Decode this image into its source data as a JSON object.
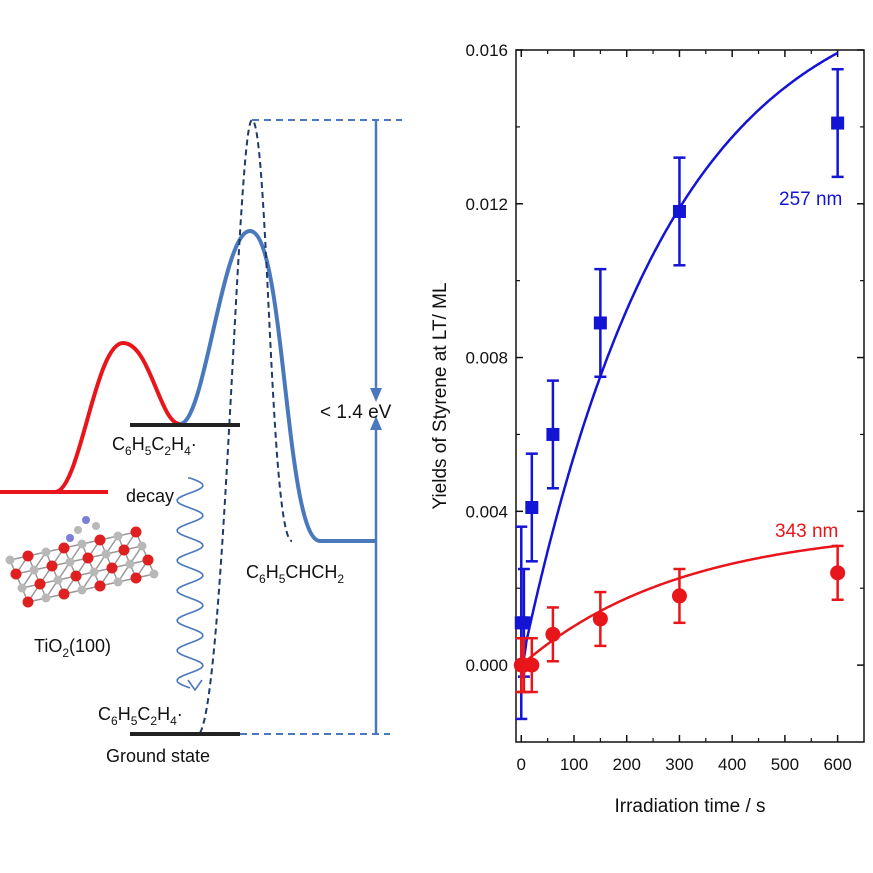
{
  "diagram": {
    "states": {
      "excited_label_base": "C",
      "ground_label": "Ground state",
      "product_label": "C6H5CHCH2",
      "substrate_label": "TiO2(100)"
    },
    "labels": {
      "decay": "decay",
      "barrier": "< 1.4 eV",
      "formula_excited": [
        "C",
        "6",
        "H",
        "5",
        "C",
        "2",
        "H",
        "4",
        "·"
      ],
      "formula_ground": [
        "C",
        "6",
        "H",
        "5",
        "C",
        "2",
        "H",
        "4",
        "·"
      ],
      "formula_product": [
        "C",
        "6",
        "H",
        "5",
        "CHCH",
        "2",
        ""
      ],
      "formula_substrate": [
        "TiO",
        "2",
        "(100)",
        "",
        ""
      ]
    },
    "colors": {
      "red_curve": "#e8161b",
      "blue_curve": "#4a78bd",
      "dashed": "#1f3a6b",
      "level": "#222222",
      "atom_red": "#e02020",
      "atom_grey": "#b8b8b8",
      "atom_blue": "#7b7fd8"
    }
  },
  "chart_data": {
    "type": "scatter",
    "xlabel": "Irradiation time / s",
    "ylabel": "Yields of Styrene at LT/ ML",
    "xlim": [
      -10,
      650
    ],
    "ylim": [
      -0.002,
      0.016
    ],
    "xticks": [
      0,
      100,
      200,
      300,
      400,
      500,
      600
    ],
    "yticks": [
      0.0,
      0.004,
      0.008,
      0.012,
      0.016
    ],
    "ytick_labels": [
      "0.000",
      "0.004",
      "0.008",
      "0.012",
      "0.016"
    ],
    "series": [
      {
        "name": "257 nm",
        "color": "#1414d4",
        "marker": "square",
        "x": [
          0,
          5,
          20,
          60,
          150,
          300,
          600
        ],
        "y": [
          0.0011,
          0.0011,
          0.0041,
          0.006,
          0.0089,
          0.0118,
          0.0141
        ],
        "err": [
          0.0025,
          0.0014,
          0.0014,
          0.0014,
          0.0014,
          0.0014,
          0.0014
        ],
        "fit": {
          "a": 0.018,
          "k": 0.0036
        }
      },
      {
        "name": "343 nm",
        "color": "#e8161b",
        "marker": "circle",
        "x": [
          0,
          5,
          20,
          60,
          150,
          300,
          600
        ],
        "y": [
          0.0,
          0.0,
          0.0,
          0.0008,
          0.0012,
          0.0018,
          0.0024
        ],
        "err": [
          0.0007,
          0.0007,
          0.0007,
          0.0007,
          0.0007,
          0.0007,
          0.0007
        ],
        "fit": {
          "a": 0.0036,
          "k": 0.0033
        }
      }
    ]
  }
}
